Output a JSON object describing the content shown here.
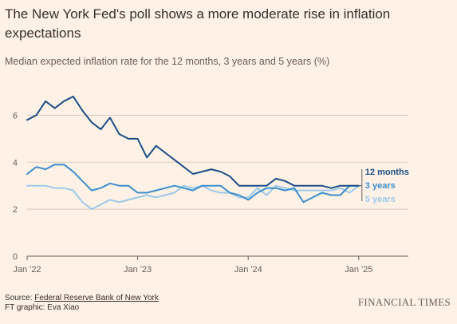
{
  "header": {
    "title": "The New York Fed's poll shows a more moderate rise in inflation expectations",
    "subtitle": "Median expected inflation rate for the 12 months, 3 years and 5 years (%)"
  },
  "footer": {
    "source_prefix": "Source: ",
    "source_link": "Federal Reserve Bank of New York",
    "credit": "FT graphic: Eva Xiao",
    "logo": "FINANCIAL TIMES"
  },
  "colors": {
    "background": "#FFF1E5",
    "grid": "#D9CCC1",
    "axis": "#66605C",
    "twelve_months": "#1A4F87",
    "three_years": "#3A8FCD",
    "five_years": "#9BCAE8"
  },
  "chart_data": {
    "type": "line",
    "title": "The New York Fed's poll shows a more moderate rise in inflation expectations",
    "subtitle": "Median expected inflation rate for the 12 months, 3 years and 5 years (%)",
    "xlabel": "",
    "ylabel": "",
    "x": [
      "2022-01",
      "2022-02",
      "2022-03",
      "2022-04",
      "2022-05",
      "2022-06",
      "2022-07",
      "2022-08",
      "2022-09",
      "2022-10",
      "2022-11",
      "2022-12",
      "2023-01",
      "2023-02",
      "2023-03",
      "2023-04",
      "2023-05",
      "2023-06",
      "2023-07",
      "2023-08",
      "2023-09",
      "2023-10",
      "2023-11",
      "2023-12",
      "2024-01",
      "2024-02",
      "2024-03",
      "2024-04",
      "2024-05",
      "2024-06",
      "2024-07",
      "2024-08",
      "2024-09",
      "2024-10",
      "2024-11",
      "2024-12",
      "2025-01"
    ],
    "x_ticks": [
      "Jan '22",
      "Jan '23",
      "Jan '24",
      "Jan '25"
    ],
    "y_ticks": [
      0,
      2,
      4,
      6
    ],
    "ylim": [
      0,
      7
    ],
    "grid": true,
    "series": [
      {
        "name": "12 months",
        "values": [
          5.8,
          6.0,
          6.6,
          6.3,
          6.6,
          6.8,
          6.2,
          5.7,
          5.4,
          5.9,
          5.2,
          5.0,
          5.0,
          4.2,
          4.7,
          4.4,
          4.1,
          3.8,
          3.5,
          3.6,
          3.7,
          3.6,
          3.4,
          3.0,
          3.0,
          3.0,
          3.0,
          3.3,
          3.2,
          3.0,
          3.0,
          3.0,
          3.0,
          2.9,
          3.0,
          3.0,
          3.0
        ],
        "color": "#1A4F87"
      },
      {
        "name": "3 years",
        "values": [
          3.5,
          3.8,
          3.7,
          3.9,
          3.9,
          3.6,
          3.2,
          2.8,
          2.9,
          3.1,
          3.0,
          3.0,
          2.7,
          2.7,
          2.8,
          2.9,
          3.0,
          2.9,
          2.8,
          3.0,
          3.0,
          3.0,
          2.7,
          2.6,
          2.4,
          2.7,
          2.9,
          2.9,
          2.8,
          2.9,
          2.3,
          2.5,
          2.7,
          2.6,
          2.6,
          3.0,
          3.0
        ],
        "color": "#3A8FCD"
      },
      {
        "name": "5 years",
        "values": [
          3.0,
          3.0,
          3.0,
          2.9,
          2.9,
          2.8,
          2.3,
          2.0,
          2.2,
          2.4,
          2.3,
          2.4,
          2.5,
          2.6,
          2.5,
          2.6,
          2.7,
          3.0,
          2.9,
          3.0,
          2.8,
          2.7,
          2.7,
          2.5,
          2.5,
          2.9,
          2.6,
          3.0,
          2.9,
          2.8,
          2.8,
          2.8,
          2.8,
          2.8,
          2.9,
          2.7,
          3.0
        ],
        "color": "#9BCAE8"
      }
    ],
    "legend_placement": "inline-right"
  }
}
